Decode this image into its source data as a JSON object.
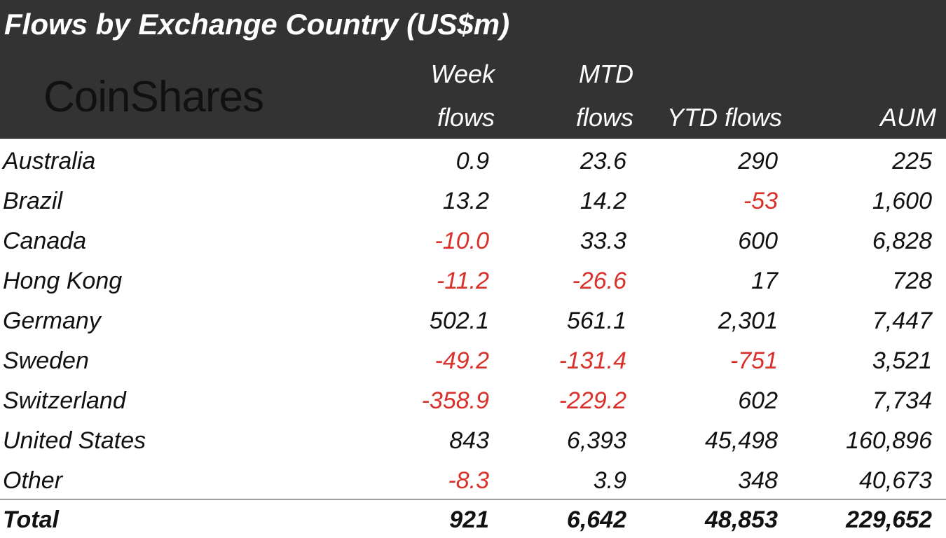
{
  "header": {
    "title": "Flows by Exchange Country (US$m)",
    "brand": "CoinShares",
    "columns": [
      [
        "Week",
        "flows"
      ],
      [
        "MTD",
        "flows"
      ],
      [
        "YTD flows"
      ],
      [
        "AUM"
      ]
    ]
  },
  "table": {
    "rows": [
      [
        "Australia",
        "0.9",
        "23.6",
        "290",
        "225"
      ],
      [
        "Brazil",
        "13.2",
        "14.2",
        "-53",
        "1,600"
      ],
      [
        "Canada",
        "-10.0",
        "33.3",
        "600",
        "6,828"
      ],
      [
        "Hong Kong",
        "-11.2",
        "-26.6",
        "17",
        "728"
      ],
      [
        "Germany",
        "502.1",
        "561.1",
        "2,301",
        "7,447"
      ],
      [
        "Sweden",
        "-49.2",
        "-131.4",
        "-751",
        "3,521"
      ],
      [
        "Switzerland",
        "-358.9",
        "-229.2",
        "602",
        "7,734"
      ],
      [
        "United States",
        "843",
        "6,393",
        "45,498",
        "160,896"
      ],
      [
        "Other",
        "-8.3",
        "3.9",
        "348",
        "40,673"
      ]
    ],
    "total": [
      "Total",
      "921",
      "6,642",
      "48,853",
      "229,652"
    ]
  }
}
